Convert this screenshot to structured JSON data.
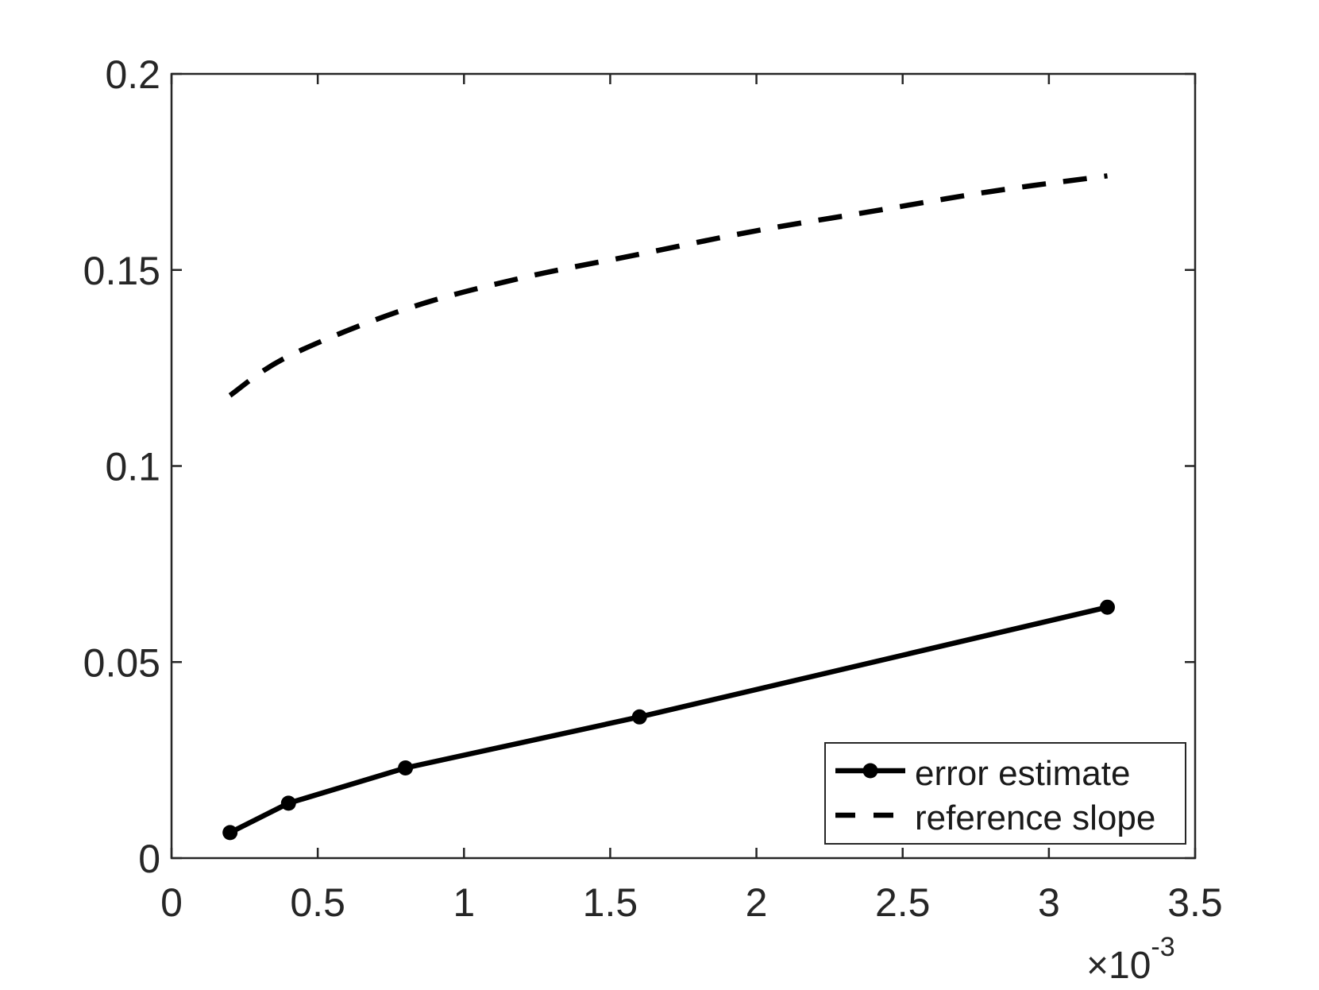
{
  "chart_data": {
    "type": "line",
    "title": "",
    "xlabel": "",
    "ylabel": "",
    "grid": false,
    "background_color": "#ffffff",
    "axis_color": "#262626",
    "line_color": "#000000",
    "x_axis": {
      "lim": [
        0,
        0.0035
      ],
      "ticks": [
        0,
        0.0005,
        0.001,
        0.0015,
        0.002,
        0.0025,
        0.003,
        0.0035
      ],
      "tick_labels": [
        "0",
        "0.5",
        "1",
        "1.5",
        "2",
        "2.5",
        "3",
        "3.5"
      ],
      "offset_base": "×10",
      "offset_exponent": "-3"
    },
    "y_axis": {
      "lim": [
        0,
        0.2
      ],
      "ticks": [
        0,
        0.05,
        0.1,
        0.15,
        0.2
      ],
      "tick_labels": [
        "0",
        "0.05",
        "0.1",
        "0.15",
        "0.2"
      ]
    },
    "legend": {
      "position": "lower right",
      "entries": [
        "error estimate",
        "reference slope"
      ]
    },
    "series": [
      {
        "name": "error estimate",
        "style": "solid",
        "marker": "circle",
        "x": [
          0.0002,
          0.0004,
          0.0008,
          0.0016,
          0.0032
        ],
        "y": [
          0.0065,
          0.014,
          0.023,
          0.036,
          0.064
        ]
      },
      {
        "name": "reference slope",
        "style": "dashed",
        "marker": "none",
        "x": [
          0.0002,
          0.0004,
          0.0008,
          0.0012,
          0.0016,
          0.002,
          0.0024,
          0.0028,
          0.0032
        ],
        "y": [
          0.118,
          0.128,
          0.14,
          0.148,
          0.154,
          0.16,
          0.165,
          0.17,
          0.174
        ]
      }
    ]
  }
}
